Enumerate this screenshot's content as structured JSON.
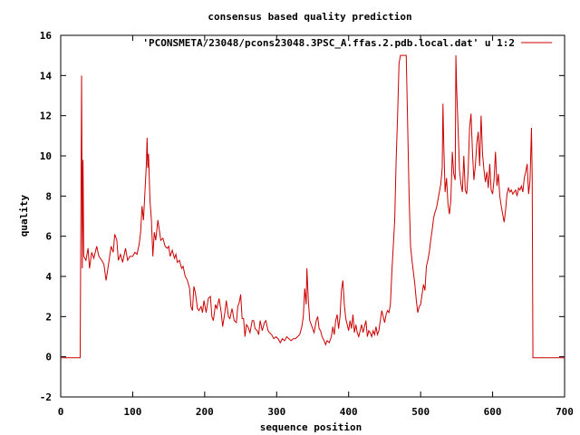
{
  "chart_data": {
    "type": "line",
    "title": "consensus based quality prediction",
    "xlabel": "sequence position",
    "ylabel": "quality",
    "xlim": [
      0,
      700
    ],
    "ylim": [
      -2,
      16
    ],
    "xticks": [
      0,
      100,
      200,
      300,
      400,
      500,
      600,
      700
    ],
    "yticks": [
      -2,
      0,
      2,
      4,
      6,
      8,
      10,
      12,
      14,
      16
    ],
    "grid": false,
    "legend": "top-right",
    "colors": {
      "series": "#cc0000",
      "axes": "#000000"
    },
    "series": [
      {
        "name": "'PCONSMETA/23048/pcons23048.3PSC_A.ffas.2.pdb.local.dat' u 1:2",
        "points": [
          [
            1,
            -0.05
          ],
          [
            27,
            -0.05
          ],
          [
            28,
            6.8
          ],
          [
            29,
            14.0
          ],
          [
            30,
            4.4
          ],
          [
            31,
            9.8
          ],
          [
            32,
            5.0
          ],
          [
            35,
            4.8
          ],
          [
            38,
            5.4
          ],
          [
            40,
            4.4
          ],
          [
            43,
            5.2
          ],
          [
            46,
            4.9
          ],
          [
            50,
            5.5
          ],
          [
            53,
            5.0
          ],
          [
            57,
            4.8
          ],
          [
            60,
            4.6
          ],
          [
            63,
            3.8
          ],
          [
            66,
            4.5
          ],
          [
            70,
            5.5
          ],
          [
            73,
            5.2
          ],
          [
            75,
            6.1
          ],
          [
            78,
            5.8
          ],
          [
            80,
            4.8
          ],
          [
            83,
            5.1
          ],
          [
            86,
            4.7
          ],
          [
            90,
            5.4
          ],
          [
            93,
            4.8
          ],
          [
            96,
            5.0
          ],
          [
            100,
            5.0
          ],
          [
            103,
            5.2
          ],
          [
            106,
            5.1
          ],
          [
            109,
            5.6
          ],
          [
            111,
            6.2
          ],
          [
            113,
            7.5
          ],
          [
            115,
            6.8
          ],
          [
            117,
            8.2
          ],
          [
            119,
            9.6
          ],
          [
            120,
            10.9
          ],
          [
            121,
            9.4
          ],
          [
            122,
            10.1
          ],
          [
            124,
            7.8
          ],
          [
            126,
            6.8
          ],
          [
            128,
            5.0
          ],
          [
            130,
            6.2
          ],
          [
            132,
            5.8
          ],
          [
            135,
            6.8
          ],
          [
            137,
            6.3
          ],
          [
            139,
            5.8
          ],
          [
            142,
            5.9
          ],
          [
            145,
            5.5
          ],
          [
            148,
            5.4
          ],
          [
            150,
            5.5
          ],
          [
            152,
            5.0
          ],
          [
            155,
            5.3
          ],
          [
            158,
            4.9
          ],
          [
            160,
            5.1
          ],
          [
            162,
            4.7
          ],
          [
            165,
            4.8
          ],
          [
            168,
            4.4
          ],
          [
            170,
            4.5
          ],
          [
            173,
            4.0
          ],
          [
            176,
            3.8
          ],
          [
            179,
            3.4
          ],
          [
            181,
            2.5
          ],
          [
            183,
            2.3
          ],
          [
            185,
            3.5
          ],
          [
            187,
            3.2
          ],
          [
            190,
            2.4
          ],
          [
            192,
            2.3
          ],
          [
            195,
            2.5
          ],
          [
            197,
            2.2
          ],
          [
            199,
            2.8
          ],
          [
            202,
            2.2
          ],
          [
            205,
            2.9
          ],
          [
            208,
            3.0
          ],
          [
            210,
            2.0
          ],
          [
            212,
            1.8
          ],
          [
            215,
            2.6
          ],
          [
            217,
            2.4
          ],
          [
            220,
            2.9
          ],
          [
            223,
            2.2
          ],
          [
            225,
            1.5
          ],
          [
            228,
            2.2
          ],
          [
            230,
            2.8
          ],
          [
            233,
            2.0
          ],
          [
            235,
            1.9
          ],
          [
            238,
            2.4
          ],
          [
            241,
            1.8
          ],
          [
            244,
            1.7
          ],
          [
            246,
            2.5
          ],
          [
            248,
            2.7
          ],
          [
            250,
            3.1
          ],
          [
            252,
            1.9
          ],
          [
            254,
            1.9
          ],
          [
            256,
            1.0
          ],
          [
            258,
            1.6
          ],
          [
            260,
            1.5
          ],
          [
            263,
            1.2
          ],
          [
            266,
            1.8
          ],
          [
            268,
            1.8
          ],
          [
            270,
            1.4
          ],
          [
            273,
            1.3
          ],
          [
            275,
            1.1
          ],
          [
            277,
            1.8
          ],
          [
            280,
            1.3
          ],
          [
            283,
            1.7
          ],
          [
            285,
            1.8
          ],
          [
            288,
            1.3
          ],
          [
            290,
            1.2
          ],
          [
            293,
            1.1
          ],
          [
            296,
            0.9
          ],
          [
            299,
            1.0
          ],
          [
            302,
            0.9
          ],
          [
            305,
            0.7
          ],
          [
            308,
            0.9
          ],
          [
            311,
            0.8
          ],
          [
            314,
            1.0
          ],
          [
            317,
            0.9
          ],
          [
            320,
            0.8
          ],
          [
            323,
            0.9
          ],
          [
            326,
            0.9
          ],
          [
            329,
            1.0
          ],
          [
            332,
            1.1
          ],
          [
            335,
            1.5
          ],
          [
            337,
            2.0
          ],
          [
            339,
            3.4
          ],
          [
            341,
            2.6
          ],
          [
            342,
            4.4
          ],
          [
            344,
            2.8
          ],
          [
            346,
            1.8
          ],
          [
            348,
            1.6
          ],
          [
            350,
            1.4
          ],
          [
            352,
            1.2
          ],
          [
            355,
            1.8
          ],
          [
            357,
            2.0
          ],
          [
            359,
            1.4
          ],
          [
            361,
            1.3
          ],
          [
            363,
            1.0
          ],
          [
            366,
            0.8
          ],
          [
            368,
            0.6
          ],
          [
            370,
            0.8
          ],
          [
            373,
            0.7
          ],
          [
            376,
            1.0
          ],
          [
            378,
            1.5
          ],
          [
            380,
            1.1
          ],
          [
            382,
            1.8
          ],
          [
            384,
            2.1
          ],
          [
            386,
            1.4
          ],
          [
            388,
            2.0
          ],
          [
            390,
            3.3
          ],
          [
            392,
            3.8
          ],
          [
            394,
            2.6
          ],
          [
            396,
            1.9
          ],
          [
            398,
            1.6
          ],
          [
            400,
            1.3
          ],
          [
            402,
            1.8
          ],
          [
            404,
            1.4
          ],
          [
            406,
            2.1
          ],
          [
            408,
            1.2
          ],
          [
            410,
            1.6
          ],
          [
            412,
            1.2
          ],
          [
            414,
            1.0
          ],
          [
            416,
            1.3
          ],
          [
            418,
            1.6
          ],
          [
            420,
            1.2
          ],
          [
            422,
            1.5
          ],
          [
            424,
            1.8
          ],
          [
            426,
            1.0
          ],
          [
            428,
            1.3
          ],
          [
            430,
            1.2
          ],
          [
            432,
            1.0
          ],
          [
            434,
            1.3
          ],
          [
            436,
            1.1
          ],
          [
            438,
            1.5
          ],
          [
            440,
            1.1
          ],
          [
            442,
            1.3
          ],
          [
            444,
            1.8
          ],
          [
            446,
            2.3
          ],
          [
            448,
            2.0
          ],
          [
            450,
            1.7
          ],
          [
            452,
            2.1
          ],
          [
            454,
            2.3
          ],
          [
            456,
            2.2
          ],
          [
            458,
            2.6
          ],
          [
            460,
            4.2
          ],
          [
            462,
            5.5
          ],
          [
            464,
            6.8
          ],
          [
            466,
            9.8
          ],
          [
            468,
            12.0
          ],
          [
            470,
            14.6
          ],
          [
            472,
            15.0
          ],
          [
            474,
            15.0
          ],
          [
            476,
            15.0
          ],
          [
            478,
            15.0
          ],
          [
            480,
            15.0
          ],
          [
            482,
            11.5
          ],
          [
            484,
            8.0
          ],
          [
            486,
            5.5
          ],
          [
            488,
            4.8
          ],
          [
            490,
            4.2
          ],
          [
            492,
            3.6
          ],
          [
            494,
            2.8
          ],
          [
            496,
            2.2
          ],
          [
            498,
            2.5
          ],
          [
            500,
            2.6
          ],
          [
            502,
            3.1
          ],
          [
            504,
            3.6
          ],
          [
            506,
            3.3
          ],
          [
            508,
            4.5
          ],
          [
            510,
            4.8
          ],
          [
            512,
            5.2
          ],
          [
            514,
            5.8
          ],
          [
            516,
            6.3
          ],
          [
            518,
            6.9
          ],
          [
            520,
            7.2
          ],
          [
            522,
            7.4
          ],
          [
            524,
            7.8
          ],
          [
            526,
            8.2
          ],
          [
            528,
            8.6
          ],
          [
            530,
            9.4
          ],
          [
            531,
            12.6
          ],
          [
            532,
            10.8
          ],
          [
            534,
            8.2
          ],
          [
            536,
            8.9
          ],
          [
            538,
            7.6
          ],
          [
            540,
            7.1
          ],
          [
            542,
            7.8
          ],
          [
            544,
            10.2
          ],
          [
            546,
            9.1
          ],
          [
            548,
            8.8
          ],
          [
            549,
            15.0
          ],
          [
            550,
            13.4
          ],
          [
            552,
            11.4
          ],
          [
            554,
            9.3
          ],
          [
            556,
            8.6
          ],
          [
            558,
            8.2
          ],
          [
            560,
            10.0
          ],
          [
            562,
            8.3
          ],
          [
            564,
            8.1
          ],
          [
            566,
            9.2
          ],
          [
            568,
            11.4
          ],
          [
            570,
            12.1
          ],
          [
            572,
            10.2
          ],
          [
            574,
            8.8
          ],
          [
            576,
            9.5
          ],
          [
            578,
            10.6
          ],
          [
            580,
            11.2
          ],
          [
            582,
            9.5
          ],
          [
            584,
            12.0
          ],
          [
            586,
            10.1
          ],
          [
            588,
            9.3
          ],
          [
            590,
            8.7
          ],
          [
            592,
            9.2
          ],
          [
            594,
            8.4
          ],
          [
            596,
            9.6
          ],
          [
            598,
            8.3
          ],
          [
            600,
            8.1
          ],
          [
            602,
            8.8
          ],
          [
            604,
            10.2
          ],
          [
            606,
            8.5
          ],
          [
            608,
            9.1
          ],
          [
            610,
            8.0
          ],
          [
            612,
            7.5
          ],
          [
            614,
            7.1
          ],
          [
            616,
            6.7
          ],
          [
            618,
            7.3
          ],
          [
            620,
            8.1
          ],
          [
            622,
            8.4
          ],
          [
            624,
            8.2
          ],
          [
            626,
            8.3
          ],
          [
            628,
            8.1
          ],
          [
            630,
            8.2
          ],
          [
            632,
            8.3
          ],
          [
            634,
            8.0
          ],
          [
            636,
            8.4
          ],
          [
            638,
            8.3
          ],
          [
            640,
            8.5
          ],
          [
            642,
            8.2
          ],
          [
            644,
            8.9
          ],
          [
            646,
            9.2
          ],
          [
            648,
            9.6
          ],
          [
            650,
            8.1
          ],
          [
            652,
            8.8
          ],
          [
            654,
            11.4
          ],
          [
            655,
            8.9
          ],
          [
            656,
            -0.05
          ],
          [
            700,
            -0.05
          ]
        ]
      }
    ]
  }
}
